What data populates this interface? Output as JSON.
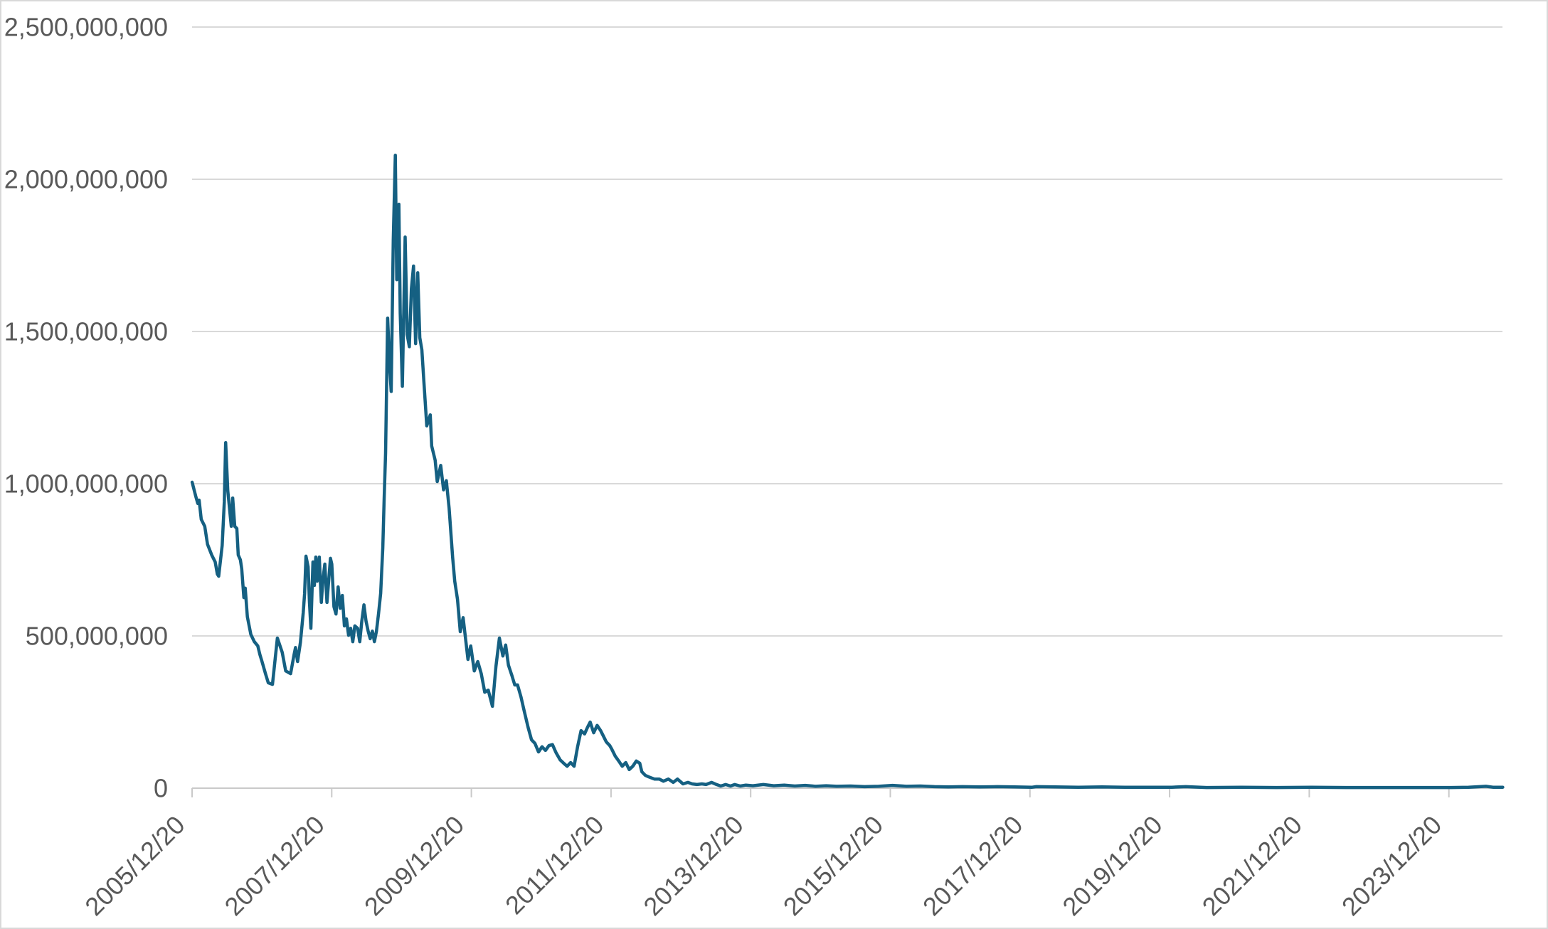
{
  "colors": {
    "series_line": "#156082",
    "gridline": "#d9d9d9",
    "axis_line": "#c9c9c9",
    "tick_mark": "#c9c9c9",
    "axis_label_text": "#595959",
    "chart_border": "#d9d9d9",
    "background": "#ffffff"
  },
  "chart_data": {
    "type": "line",
    "legend": "none",
    "grid": "horizontal-only",
    "series_count": 1,
    "x_axis": {
      "kind": "date",
      "tick_labels": [
        "2005/12/20",
        "2007/12/20",
        "2009/12/20",
        "2011/12/20",
        "2013/12/20",
        "2015/12/20",
        "2017/12/20",
        "2019/12/20",
        "2021/12/20",
        "2023/12/20"
      ],
      "label_rotation_deg": -45,
      "range_start": "2005/12/20",
      "range_end_approx": "2024/09"
    },
    "y_axis": {
      "min_millions": 0,
      "max_millions": 2500,
      "tick_values_millions": [
        0,
        500,
        1000,
        1500,
        2000,
        2500
      ],
      "tick_labels": [
        "0",
        "500,000,000",
        "1,000,000,000",
        "1,500,000,000",
        "2,000,000,000",
        "2,500,000,000"
      ]
    },
    "value_note": "Point values estimated from pixels. x = decimal year, y = millions (multiply by 1,000,000). Underlying series is daily; sampled ~semi-monthly.",
    "peak": {
      "x": 2008.88,
      "value_millions": 2079
    },
    "points": [
      [
        2005.97,
        1005
      ],
      [
        2006.02,
        960
      ],
      [
        2006.05,
        935
      ],
      [
        2006.07,
        946
      ],
      [
        2006.1,
        883
      ],
      [
        2006.15,
        860
      ],
      [
        2006.19,
        801
      ],
      [
        2006.25,
        766
      ],
      [
        2006.3,
        743
      ],
      [
        2006.33,
        703
      ],
      [
        2006.35,
        696
      ],
      [
        2006.4,
        797
      ],
      [
        2006.43,
        940
      ],
      [
        2006.45,
        1135
      ],
      [
        2006.48,
        977
      ],
      [
        2006.53,
        860
      ],
      [
        2006.55,
        953
      ],
      [
        2006.58,
        860
      ],
      [
        2006.61,
        853
      ],
      [
        2006.63,
        766
      ],
      [
        2006.66,
        750
      ],
      [
        2006.68,
        720
      ],
      [
        2006.71,
        626
      ],
      [
        2006.73,
        657
      ],
      [
        2006.76,
        563
      ],
      [
        2006.81,
        505
      ],
      [
        2006.86,
        481
      ],
      [
        2006.91,
        467
      ],
      [
        2006.94,
        439
      ],
      [
        2006.97,
        416
      ],
      [
        2007.02,
        376
      ],
      [
        2007.06,
        346
      ],
      [
        2007.12,
        341
      ],
      [
        2007.19,
        493
      ],
      [
        2007.26,
        446
      ],
      [
        2007.31,
        385
      ],
      [
        2007.38,
        376
      ],
      [
        2007.43,
        439
      ],
      [
        2007.45,
        462
      ],
      [
        2007.48,
        416
      ],
      [
        2007.52,
        479
      ],
      [
        2007.56,
        575
      ],
      [
        2007.58,
        640
      ],
      [
        2007.6,
        762
      ],
      [
        2007.63,
        727
      ],
      [
        2007.65,
        610
      ],
      [
        2007.67,
        525
      ],
      [
        2007.7,
        743
      ],
      [
        2007.72,
        666
      ],
      [
        2007.74,
        759
      ],
      [
        2007.76,
        680
      ],
      [
        2007.79,
        759
      ],
      [
        2007.82,
        610
      ],
      [
        2007.84,
        680
      ],
      [
        2007.87,
        736
      ],
      [
        2007.9,
        610
      ],
      [
        2007.92,
        666
      ],
      [
        2007.95,
        755
      ],
      [
        2007.97,
        736
      ],
      [
        2008.0,
        596
      ],
      [
        2008.03,
        572
      ],
      [
        2008.06,
        661
      ],
      [
        2008.09,
        591
      ],
      [
        2008.12,
        633
      ],
      [
        2008.15,
        533
      ],
      [
        2008.18,
        556
      ],
      [
        2008.21,
        502
      ],
      [
        2008.24,
        525
      ],
      [
        2008.27,
        481
      ],
      [
        2008.3,
        533
      ],
      [
        2008.34,
        525
      ],
      [
        2008.37,
        481
      ],
      [
        2008.4,
        549
      ],
      [
        2008.43,
        602
      ],
      [
        2008.46,
        549
      ],
      [
        2008.49,
        516
      ],
      [
        2008.52,
        491
      ],
      [
        2008.55,
        516
      ],
      [
        2008.58,
        481
      ],
      [
        2008.61,
        516
      ],
      [
        2008.64,
        575
      ],
      [
        2008.67,
        640
      ],
      [
        2008.7,
        790
      ],
      [
        2008.72,
        950
      ],
      [
        2008.74,
        1100
      ],
      [
        2008.77,
        1544
      ],
      [
        2008.8,
        1380
      ],
      [
        2008.82,
        1303
      ],
      [
        2008.85,
        1800
      ],
      [
        2008.88,
        2079
      ],
      [
        2008.9,
        1670
      ],
      [
        2008.93,
        1918
      ],
      [
        2008.95,
        1560
      ],
      [
        2008.98,
        1320
      ],
      [
        2009.02,
        1810
      ],
      [
        2009.05,
        1490
      ],
      [
        2009.08,
        1450
      ],
      [
        2009.11,
        1640
      ],
      [
        2009.14,
        1715
      ],
      [
        2009.17,
        1460
      ],
      [
        2009.2,
        1693
      ],
      [
        2009.23,
        1480
      ],
      [
        2009.26,
        1440
      ],
      [
        2009.29,
        1330
      ],
      [
        2009.33,
        1190
      ],
      [
        2009.38,
        1226
      ],
      [
        2009.4,
        1124
      ],
      [
        2009.45,
        1077
      ],
      [
        2009.48,
        1007
      ],
      [
        2009.53,
        1060
      ],
      [
        2009.57,
        980
      ],
      [
        2009.61,
        1010
      ],
      [
        2009.65,
        920
      ],
      [
        2009.7,
        760
      ],
      [
        2009.73,
        680
      ],
      [
        2009.77,
        620
      ],
      [
        2009.81,
        514
      ],
      [
        2009.85,
        560
      ],
      [
        2009.92,
        423
      ],
      [
        2009.96,
        467
      ],
      [
        2010.01,
        385
      ],
      [
        2010.06,
        416
      ],
      [
        2010.11,
        376
      ],
      [
        2010.16,
        315
      ],
      [
        2010.21,
        322
      ],
      [
        2010.27,
        269
      ],
      [
        2010.32,
        399
      ],
      [
        2010.37,
        493
      ],
      [
        2010.42,
        434
      ],
      [
        2010.46,
        470
      ],
      [
        2010.5,
        404
      ],
      [
        2010.55,
        369
      ],
      [
        2010.59,
        339
      ],
      [
        2010.63,
        339
      ],
      [
        2010.68,
        299
      ],
      [
        2010.72,
        259
      ],
      [
        2010.78,
        201
      ],
      [
        2010.83,
        159
      ],
      [
        2010.88,
        147
      ],
      [
        2010.93,
        119
      ],
      [
        2010.98,
        136
      ],
      [
        2011.03,
        124
      ],
      [
        2011.08,
        140
      ],
      [
        2011.13,
        143
      ],
      [
        2011.18,
        117
      ],
      [
        2011.24,
        93
      ],
      [
        2011.29,
        82
      ],
      [
        2011.34,
        72
      ],
      [
        2011.39,
        84
      ],
      [
        2011.44,
        72
      ],
      [
        2011.49,
        136
      ],
      [
        2011.54,
        189
      ],
      [
        2011.59,
        178
      ],
      [
        2011.63,
        199
      ],
      [
        2011.67,
        217
      ],
      [
        2011.72,
        182
      ],
      [
        2011.77,
        206
      ],
      [
        2011.82,
        189
      ],
      [
        2011.86,
        171
      ],
      [
        2011.9,
        152
      ],
      [
        2011.95,
        140
      ],
      [
        2011.98,
        128
      ],
      [
        2012.03,
        105
      ],
      [
        2012.08,
        89
      ],
      [
        2012.13,
        72
      ],
      [
        2012.18,
        84
      ],
      [
        2012.23,
        61
      ],
      [
        2012.28,
        72
      ],
      [
        2012.33,
        89
      ],
      [
        2012.38,
        82
      ],
      [
        2012.41,
        54
      ],
      [
        2012.46,
        42
      ],
      [
        2012.51,
        37
      ],
      [
        2012.59,
        30
      ],
      [
        2012.66,
        30
      ],
      [
        2012.72,
        23
      ],
      [
        2012.79,
        30
      ],
      [
        2012.86,
        19
      ],
      [
        2012.92,
        30
      ],
      [
        2013.0,
        14
      ],
      [
        2013.07,
        19
      ],
      [
        2013.13,
        14
      ],
      [
        2013.2,
        12
      ],
      [
        2013.27,
        14
      ],
      [
        2013.33,
        12
      ],
      [
        2013.41,
        19
      ],
      [
        2013.48,
        12
      ],
      [
        2013.54,
        7
      ],
      [
        2013.61,
        12
      ],
      [
        2013.68,
        7
      ],
      [
        2013.74,
        12
      ],
      [
        2013.82,
        7
      ],
      [
        2013.9,
        10
      ],
      [
        2014.0,
        8
      ],
      [
        2014.15,
        12
      ],
      [
        2014.3,
        8
      ],
      [
        2014.45,
        10
      ],
      [
        2014.6,
        7
      ],
      [
        2014.75,
        9
      ],
      [
        2014.9,
        6
      ],
      [
        2015.05,
        8
      ],
      [
        2015.2,
        6
      ],
      [
        2015.4,
        7
      ],
      [
        2015.6,
        5
      ],
      [
        2015.8,
        6
      ],
      [
        2016.0,
        9
      ],
      [
        2016.2,
        6
      ],
      [
        2016.4,
        7
      ],
      [
        2016.6,
        5
      ],
      [
        2016.8,
        4
      ],
      [
        2017.0,
        5
      ],
      [
        2017.25,
        4
      ],
      [
        2017.5,
        5
      ],
      [
        2017.75,
        4
      ],
      [
        2018.0,
        3
      ],
      [
        2018.06,
        5
      ],
      [
        2018.33,
        4
      ],
      [
        2018.66,
        3
      ],
      [
        2019.0,
        4
      ],
      [
        2019.33,
        3
      ],
      [
        2019.66,
        3
      ],
      [
        2020.0,
        3
      ],
      [
        2020.2,
        5
      ],
      [
        2020.5,
        2
      ],
      [
        2021.0,
        3
      ],
      [
        2021.5,
        2
      ],
      [
        2022.0,
        3
      ],
      [
        2022.5,
        2
      ],
      [
        2023.0,
        2
      ],
      [
        2023.5,
        2
      ],
      [
        2024.0,
        2
      ],
      [
        2024.25,
        3
      ],
      [
        2024.5,
        6
      ],
      [
        2024.6,
        3
      ],
      [
        2024.74,
        3
      ]
    ]
  }
}
